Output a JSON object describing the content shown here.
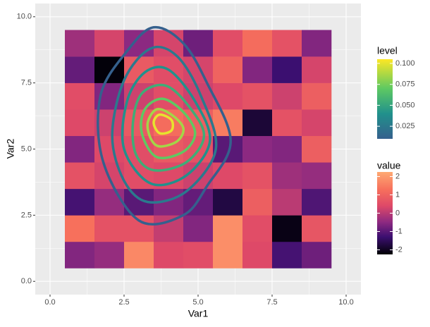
{
  "chart_data": {
    "type": "heatmap_contour",
    "x_label": "Var1",
    "y_label": "Var2",
    "xlim": [
      -0.5,
      10.5
    ],
    "ylim": [
      -0.5,
      10.5
    ],
    "xticks": [
      {
        "value": 0,
        "label": "0.0"
      },
      2.5,
      {
        "value": 5,
        "label": "5.0"
      },
      7.5,
      {
        "value": 10,
        "label": "10.0"
      }
    ],
    "yticks": [
      {
        "value": 0,
        "label": "0.0"
      },
      2.5,
      {
        "value": 5,
        "label": "5.0"
      },
      7.5,
      {
        "value": 10,
        "label": "10.0"
      }
    ],
    "grid": true,
    "grid_minor": true,
    "tiles": {
      "x": [
        1,
        2,
        3,
        4,
        5,
        6,
        7,
        8,
        9
      ],
      "y": [
        1,
        2,
        3,
        4,
        5,
        6,
        7,
        8,
        9
      ],
      "values": [
        [
          -0.6,
          -0.4,
          1.7,
          0.4,
          0.5,
          1.8,
          0.4,
          -1.2,
          -0.8
        ],
        [
          1.3,
          0.6,
          0.6,
          0.1,
          -0.6,
          1.8,
          0.5,
          -2.1,
          0.7
        ],
        [
          -1.2,
          -0.4,
          -1.0,
          -0.6,
          -0.9,
          -1.7,
          0.9,
          0.0,
          -1.1
        ],
        [
          0.6,
          0.3,
          0.5,
          0.4,
          0.2,
          0.4,
          0.6,
          -0.3,
          -0.4
        ],
        [
          -0.6,
          0.4,
          0.5,
          0.8,
          0.6,
          -1.0,
          -0.5,
          -0.6,
          0.9
        ],
        [
          0.4,
          0.2,
          0.8,
          1.2,
          0.9,
          1.5,
          -1.8,
          0.6,
          0.3
        ],
        [
          0.5,
          -0.6,
          0.2,
          0.5,
          0.2,
          0.4,
          0.6,
          0.2,
          0.9
        ],
        [
          -0.9,
          -2.2,
          0.8,
          0.5,
          0.3,
          1.0,
          -0.6,
          -1.3,
          0.3
        ],
        [
          -0.3,
          0.3,
          -0.5,
          0.3,
          -0.8,
          0.5,
          1.2,
          0.6,
          -0.6
        ]
      ]
    },
    "contours": [
      {
        "level": 0.01,
        "x": [
          3.0,
          4.5,
          5.3,
          6.1,
          5.3,
          4.5,
          3.5,
          2.6,
          1.7,
          1.8
        ],
        "y": [
          2.3,
          2.5,
          3.6,
          5.3,
          7.5,
          9.0,
          9.6,
          8.7,
          7.0,
          4.5
        ]
      },
      {
        "level": 0.025,
        "x": [
          3.3,
          4.6,
          5.6,
          5.1,
          4.3,
          3.4,
          2.5,
          2.1,
          2.5
        ],
        "y": [
          3.0,
          3.4,
          5.0,
          7.0,
          8.5,
          8.8,
          7.6,
          5.5,
          3.8
        ]
      },
      {
        "level": 0.04,
        "x": [
          3.4,
          4.6,
          5.4,
          4.9,
          4.0,
          3.2,
          2.6,
          2.5
        ],
        "y": [
          3.7,
          4.0,
          5.3,
          6.8,
          8.0,
          7.9,
          6.8,
          5.0
        ]
      },
      {
        "level": 0.055,
        "x": [
          3.5,
          4.6,
          5.2,
          4.7,
          3.9,
          3.1,
          2.8,
          2.9
        ],
        "y": [
          4.2,
          4.5,
          5.5,
          6.6,
          7.4,
          7.1,
          6.0,
          4.8
        ]
      },
      {
        "level": 0.07,
        "x": [
          3.6,
          4.5,
          4.9,
          4.5,
          3.8,
          3.2,
          3.1
        ],
        "y": [
          4.7,
          4.9,
          5.6,
          6.4,
          6.9,
          6.5,
          5.6
        ]
      },
      {
        "level": 0.085,
        "x": [
          3.7,
          4.3,
          4.5,
          4.1,
          3.6,
          3.3,
          3.4
        ],
        "y": [
          5.1,
          5.3,
          5.8,
          6.3,
          6.5,
          6.0,
          5.4
        ]
      },
      {
        "level": 0.1,
        "x": [
          3.7,
          4.1,
          4.1,
          3.7,
          3.5
        ],
        "y": [
          5.6,
          5.7,
          6.1,
          6.3,
          6.0
        ]
      }
    ],
    "level_legend": {
      "title": "level",
      "lim": [
        0.01,
        0.105
      ],
      "ticks": [
        0.025,
        {
          "value": 0.05,
          "label": "0.050"
        },
        0.075,
        {
          "value": 0.1,
          "label": "0.100"
        }
      ],
      "stops": [
        {
          "value": 0.01,
          "color": "#35608d"
        },
        {
          "value": 0.04,
          "color": "#21918c"
        },
        {
          "value": 0.07,
          "color": "#5ec962"
        },
        {
          "value": 0.105,
          "color": "#fde725"
        }
      ]
    },
    "value_legend": {
      "title": "value",
      "lim": [
        -2.25,
        2.25
      ],
      "ticks": [
        -2,
        -1,
        0,
        1,
        2
      ],
      "stops": [
        {
          "value": -2.25,
          "color": "#000004"
        },
        {
          "value": -1.3,
          "color": "#3b0f70"
        },
        {
          "value": -0.5,
          "color": "#8c2981"
        },
        {
          "value": 0.4,
          "color": "#de4968"
        },
        {
          "value": 1.3,
          "color": "#f7705c"
        },
        {
          "value": 2.25,
          "color": "#fea973"
        }
      ]
    }
  }
}
